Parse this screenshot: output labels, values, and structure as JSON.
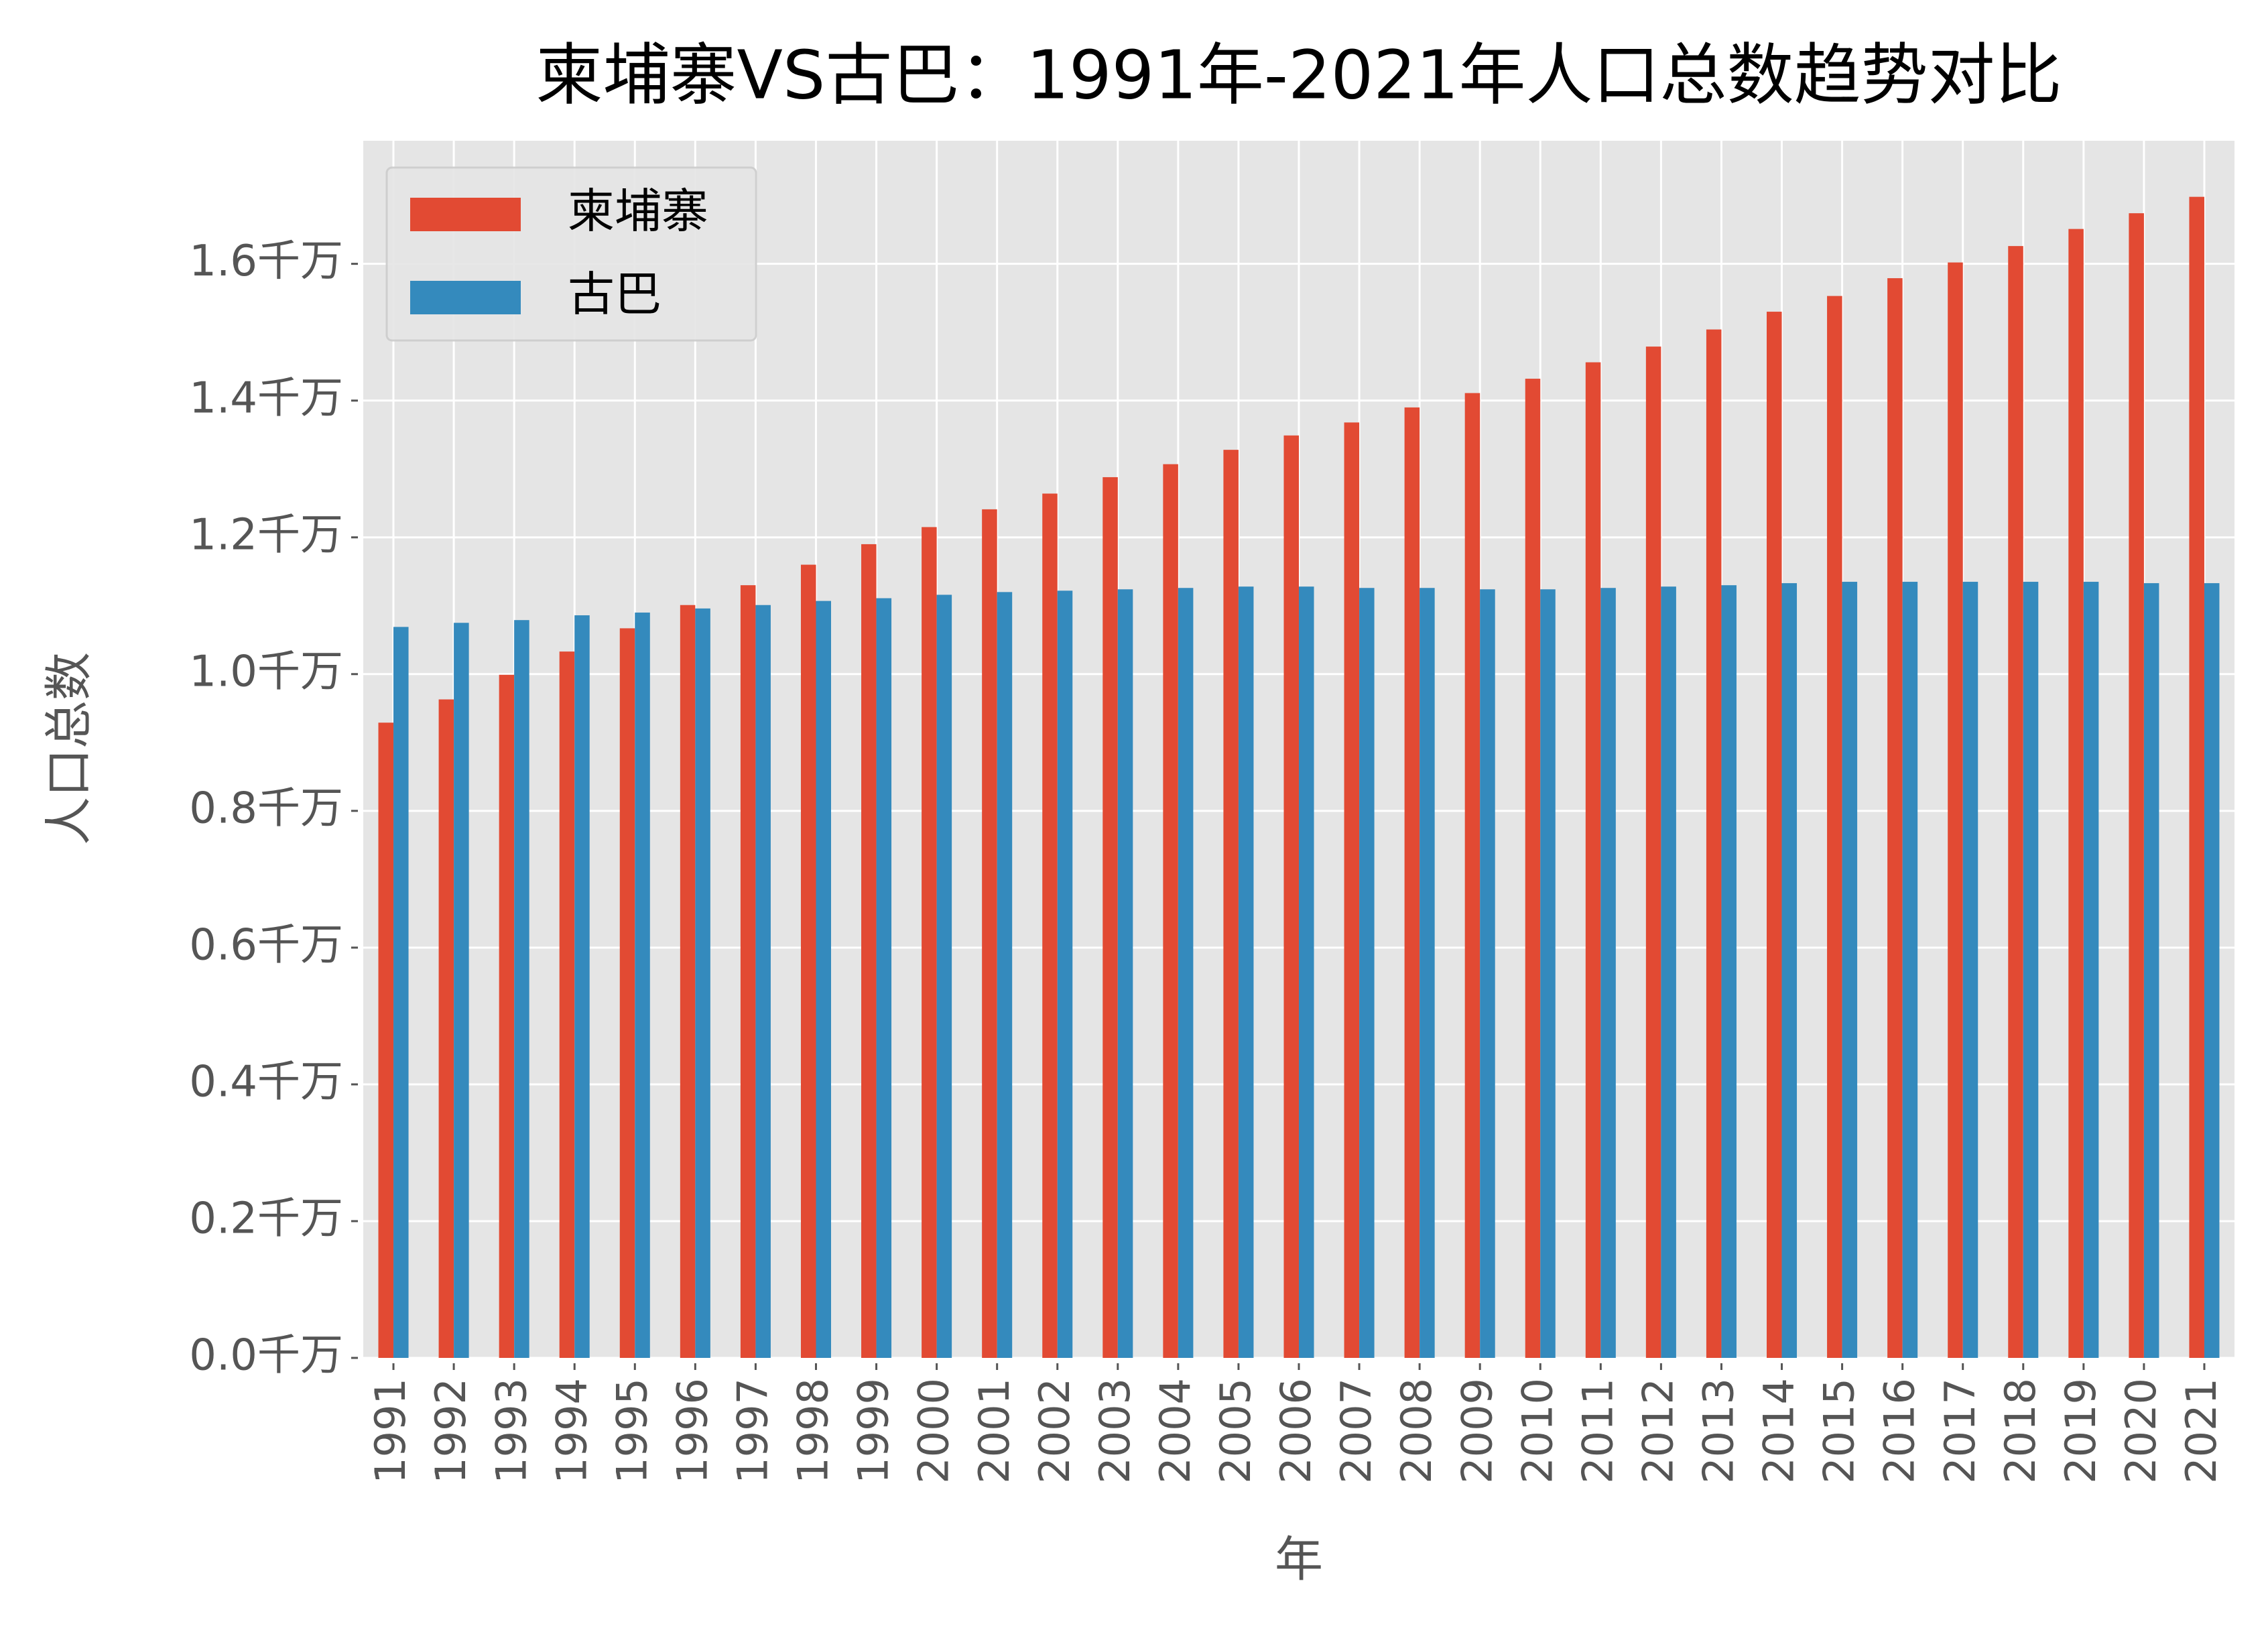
{
  "chart_data": {
    "type": "bar",
    "title": "柬埔寨VS古巴：1991年-2021年人口总数趋势对比",
    "x_label": "年",
    "y_label": "人口总数",
    "categories": [
      "1991",
      "1992",
      "1993",
      "1994",
      "1995",
      "1996",
      "1997",
      "1998",
      "1999",
      "2000",
      "2001",
      "2002",
      "2003",
      "2004",
      "2005",
      "2006",
      "2007",
      "2008",
      "2009",
      "2010",
      "2011",
      "2012",
      "2013",
      "2014",
      "2015",
      "2016",
      "2017",
      "2018",
      "2019",
      "2020",
      "2021"
    ],
    "series": [
      {
        "name": "柬埔寨",
        "color": "#e24a33",
        "values": [
          0.929,
          0.963,
          0.999,
          1.033,
          1.067,
          1.101,
          1.13,
          1.16,
          1.19,
          1.215,
          1.241,
          1.264,
          1.288,
          1.307,
          1.328,
          1.349,
          1.368,
          1.39,
          1.411,
          1.432,
          1.456,
          1.479,
          1.504,
          1.53,
          1.553,
          1.579,
          1.602,
          1.626,
          1.651,
          1.674,
          1.698
        ]
      },
      {
        "name": "古巴",
        "color": "#348abd",
        "values": [
          1.069,
          1.075,
          1.079,
          1.086,
          1.09,
          1.096,
          1.101,
          1.107,
          1.111,
          1.116,
          1.12,
          1.122,
          1.124,
          1.126,
          1.128,
          1.128,
          1.126,
          1.126,
          1.124,
          1.124,
          1.126,
          1.128,
          1.13,
          1.133,
          1.135,
          1.135,
          1.135,
          1.135,
          1.135,
          1.133,
          1.133
        ]
      }
    ],
    "ylim": [
      0,
      1.78
    ],
    "yticks": [
      {
        "value": 0,
        "label": "0.0千万"
      },
      {
        "value": 0.2,
        "label": "0.2千万"
      },
      {
        "value": 0.4,
        "label": "0.4千万"
      },
      {
        "value": 0.6,
        "label": "0.6千万"
      },
      {
        "value": 0.8,
        "label": "0.8千万"
      },
      {
        "value": 1.0,
        "label": "1.0千万"
      },
      {
        "value": 1.2,
        "label": "1.2千万"
      },
      {
        "value": 1.4,
        "label": "1.4千万"
      },
      {
        "value": 1.6,
        "label": "1.6千万"
      }
    ],
    "grid": true,
    "legend": "upper left"
  }
}
